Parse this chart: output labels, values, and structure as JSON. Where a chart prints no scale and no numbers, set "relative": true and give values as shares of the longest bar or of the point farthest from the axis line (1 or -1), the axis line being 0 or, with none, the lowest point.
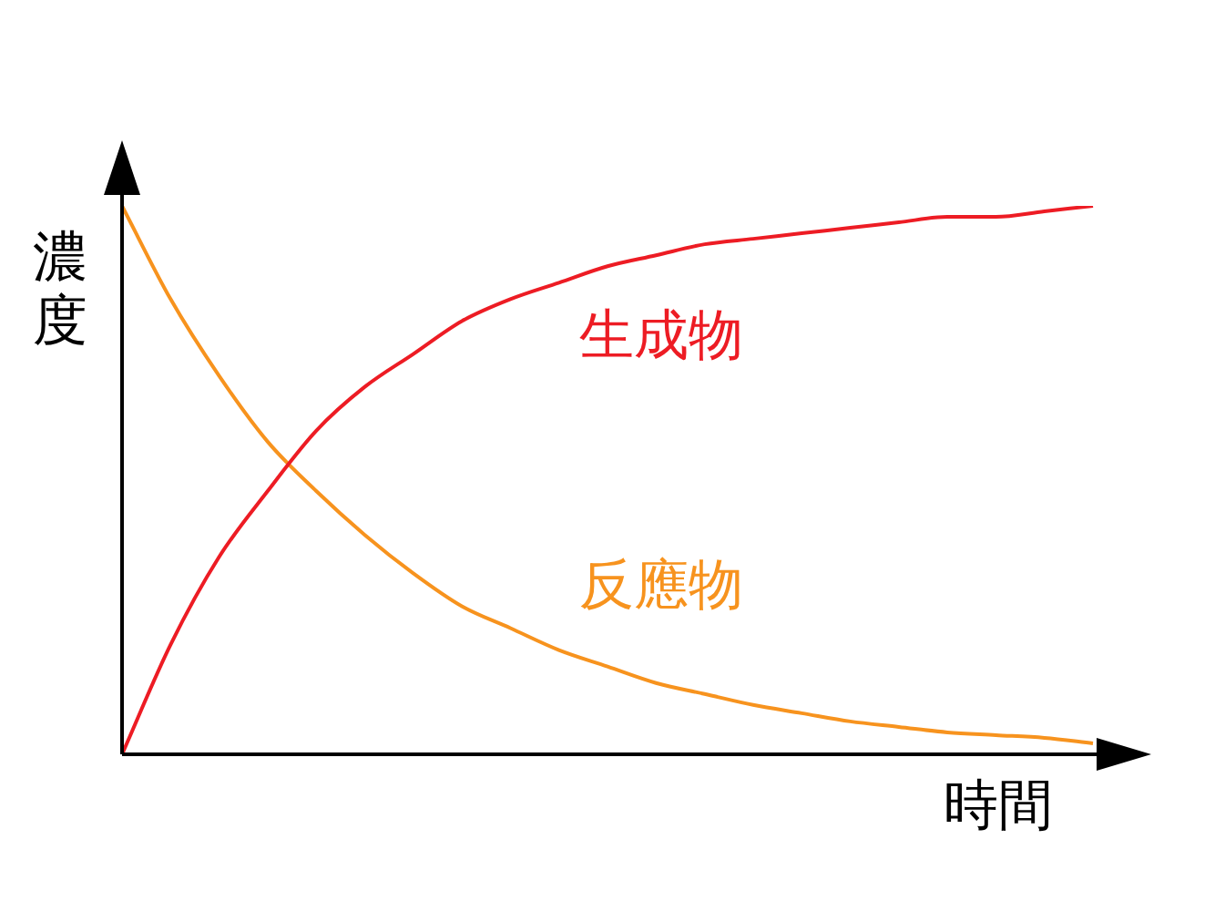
{
  "chart_data": {
    "type": "line",
    "relative": true,
    "xlabel": "時間",
    "ylabel": "濃度",
    "categories": [
      null,
      null,
      null,
      null,
      null,
      null,
      null,
      null,
      null,
      null,
      null,
      null,
      null,
      null,
      null,
      null,
      null,
      null,
      null,
      null,
      null
    ],
    "marker": "none",
    "legend": false,
    "series": [
      {
        "name": "生成物",
        "color": "#ed1c24",
        "values": [
          0,
          0.2,
          0.36,
          0.48,
          0.59,
          0.67,
          0.73,
          0.79,
          0.83,
          0.86,
          0.89,
          0.91,
          0.93,
          0.94,
          0.95,
          0.96,
          0.97,
          0.98,
          0.98,
          0.99,
          1.0
        ]
      },
      {
        "name": "反應物",
        "color": "#f7931e",
        "values": [
          1.0,
          0.83,
          0.69,
          0.57,
          0.48,
          0.4,
          0.33,
          0.27,
          0.23,
          0.19,
          0.16,
          0.13,
          0.11,
          0.09,
          0.075,
          0.06,
          0.05,
          0.04,
          0.035,
          0.03,
          0.02
        ]
      }
    ]
  }
}
